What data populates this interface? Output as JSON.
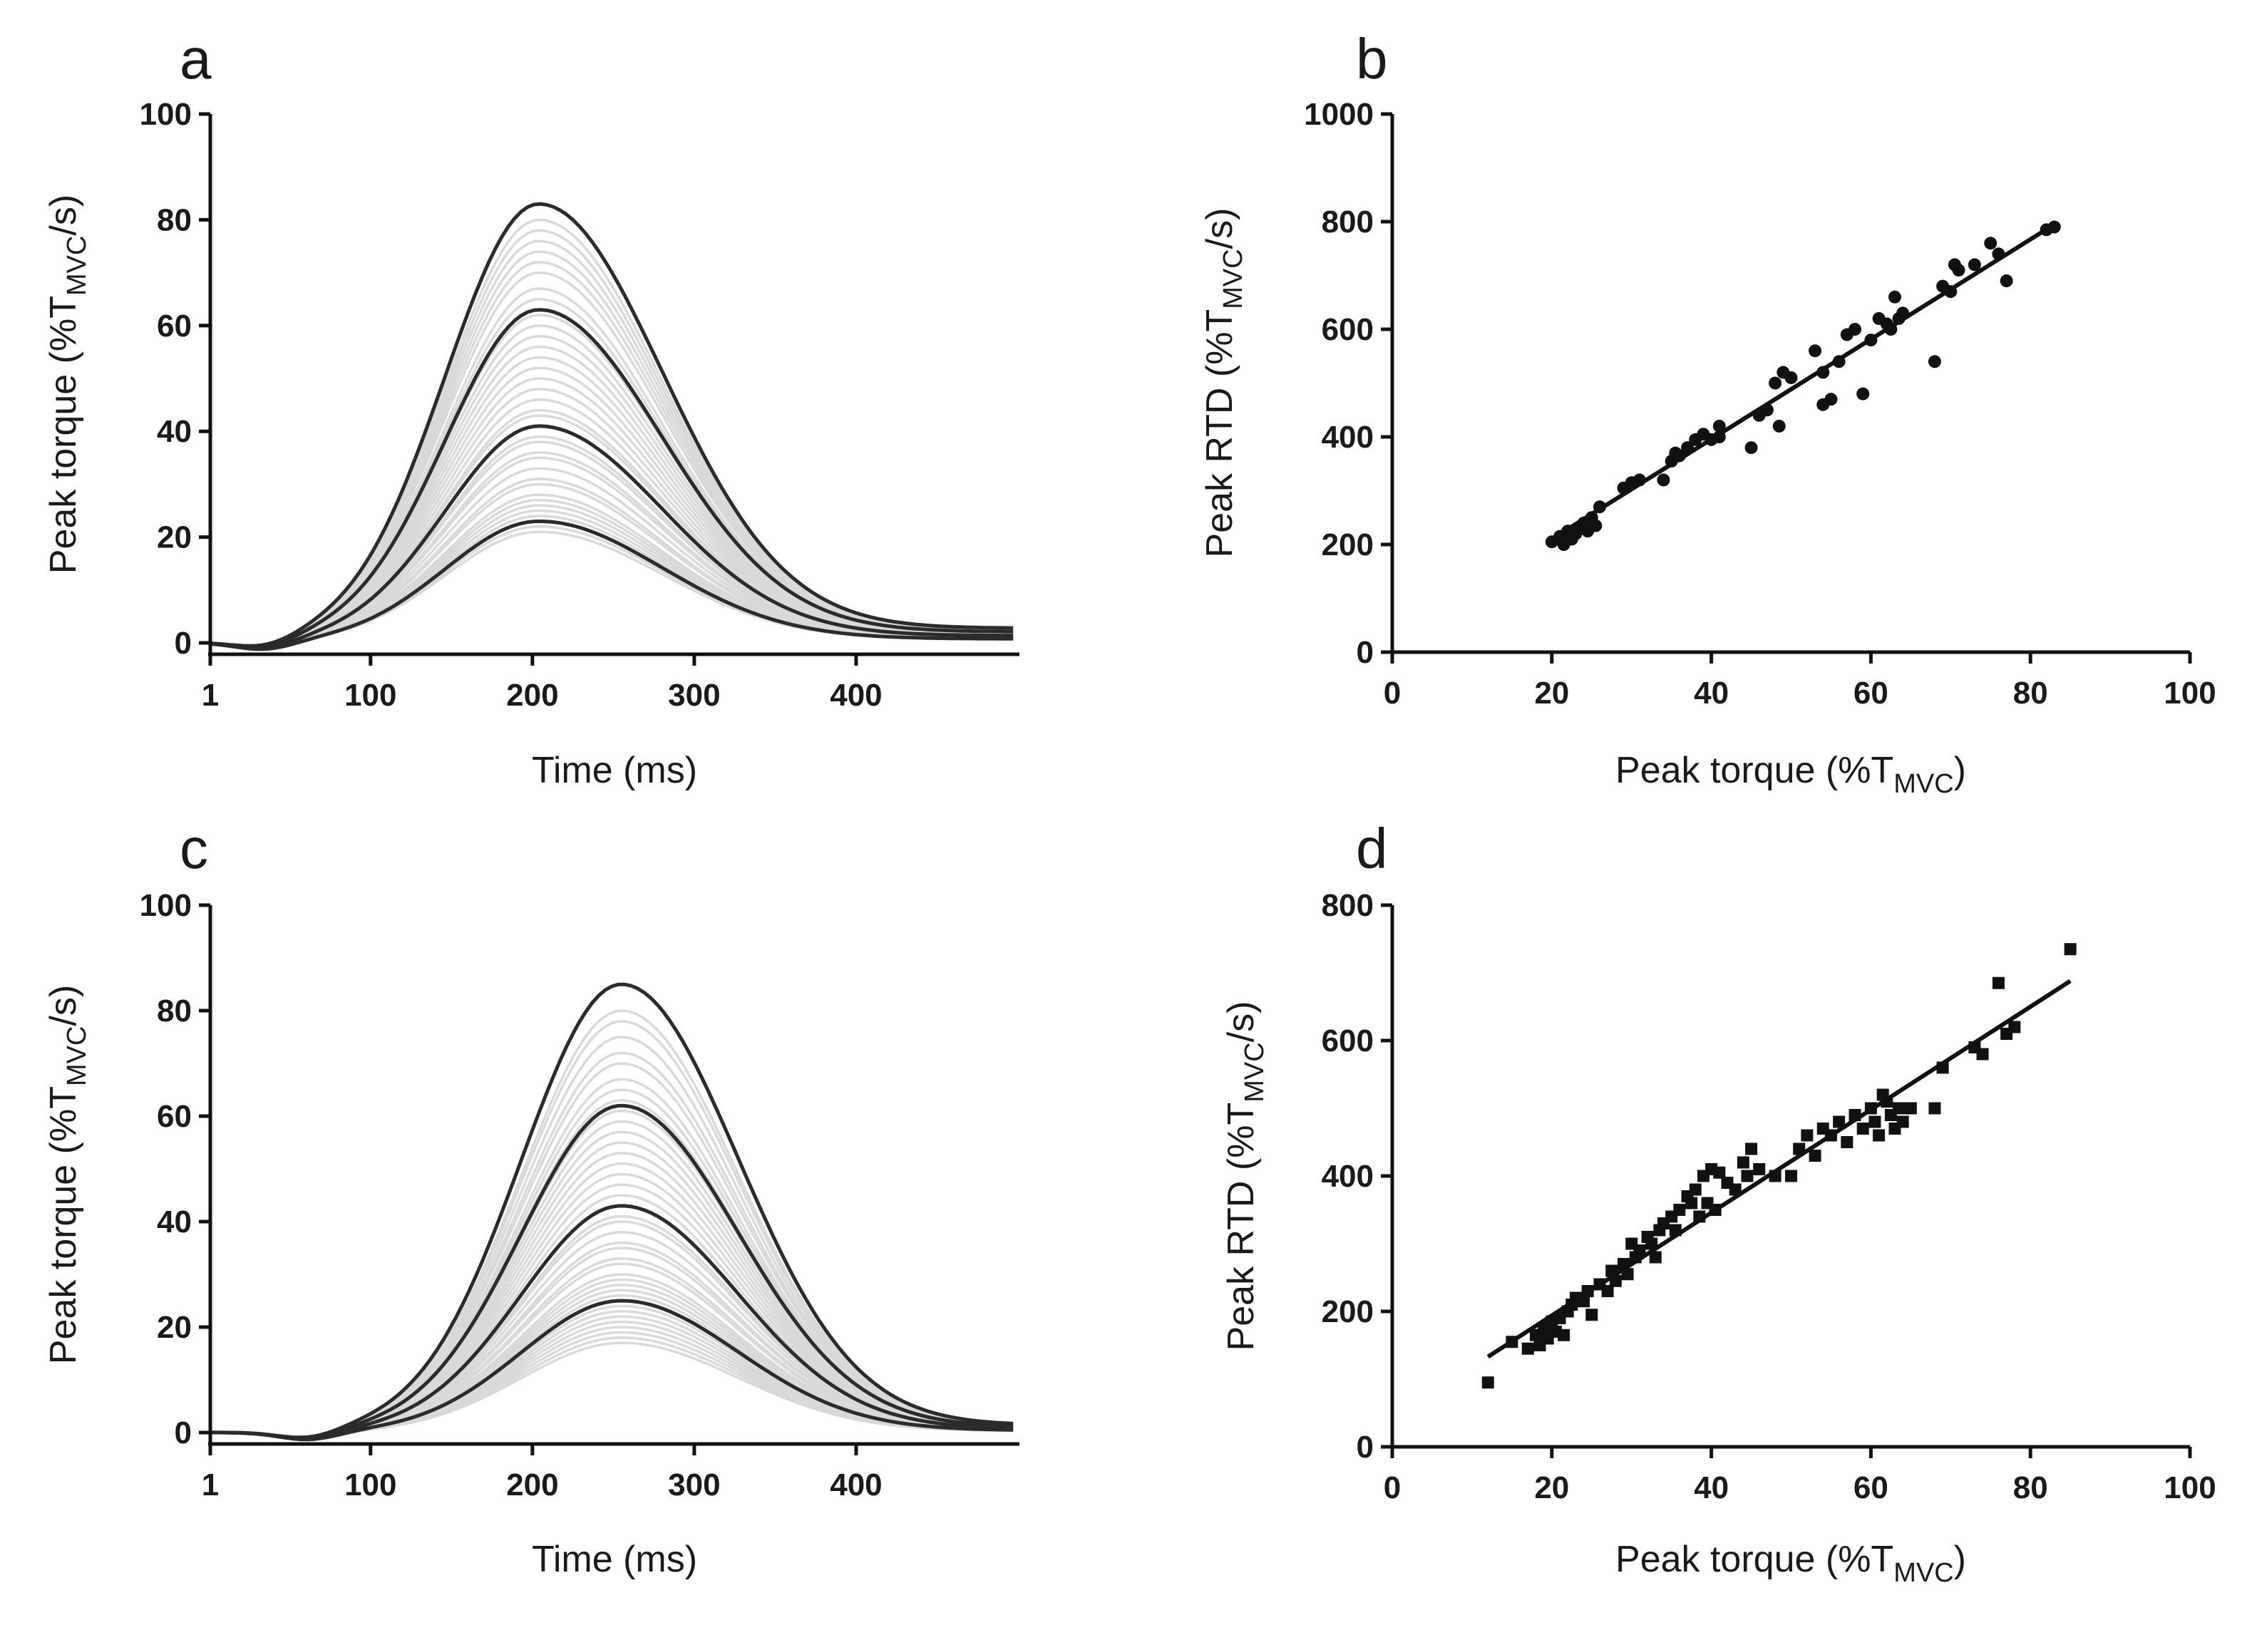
{
  "figure": {
    "panel_letters": [
      "a",
      "b",
      "c",
      "d"
    ]
  },
  "chart_data": [
    {
      "panel": "a",
      "type": "line",
      "xlabel": "Time (ms)",
      "ylabel_main": "Peak torque  (%T",
      "ylabel_sub": "MVC",
      "ylabel_end": "/s)",
      "xlim": [
        1,
        500
      ],
      "ylim": [
        0,
        100
      ],
      "xticks": [
        1,
        100,
        200,
        300,
        400
      ],
      "yticks": [
        0,
        20,
        40,
        60,
        80,
        100
      ],
      "curves": {
        "peak_time": 204,
        "rise_sigma": 58,
        "fall_sigma": 76,
        "onset": 35,
        "tail": 2
      },
      "highlight_series": [
        {
          "name": "curve-83",
          "peak": 83
        },
        {
          "name": "curve-63",
          "peak": 63
        },
        {
          "name": "curve-41",
          "peak": 41
        },
        {
          "name": "curve-23",
          "peak": 23
        }
      ],
      "background_peaks": [
        21,
        22,
        23,
        24,
        25,
        26,
        27,
        28,
        30,
        31,
        33,
        35,
        36,
        38,
        39,
        41,
        43,
        44,
        46,
        48,
        50,
        52,
        54,
        56,
        58,
        60,
        62,
        65,
        67,
        70,
        72,
        74,
        76,
        78,
        80
      ]
    },
    {
      "panel": "b",
      "type": "scatter",
      "marker": "circle",
      "xlabel_main": "Peak torque (%T",
      "xlabel_sub": "MVC",
      "xlabel_end": ")",
      "ylabel_main": "Peak RTD (%T",
      "ylabel_sub": "MVC",
      "ylabel_end": "/s)",
      "xlim": [
        0,
        100
      ],
      "ylim": [
        0,
        1000
      ],
      "xticks": [
        0,
        20,
        40,
        60,
        80,
        100
      ],
      "yticks": [
        0,
        200,
        400,
        600,
        800,
        1000
      ],
      "regression": {
        "x": [
          20,
          83
        ],
        "y": [
          210,
          795
        ]
      },
      "points": [
        [
          20,
          205
        ],
        [
          21,
          215
        ],
        [
          21.5,
          200
        ],
        [
          22,
          225
        ],
        [
          22.5,
          210
        ],
        [
          23,
          220
        ],
        [
          23.5,
          230
        ],
        [
          24,
          240
        ],
        [
          24.5,
          225
        ],
        [
          25,
          250
        ],
        [
          25.5,
          235
        ],
        [
          26,
          270
        ],
        [
          29,
          305
        ],
        [
          30,
          315
        ],
        [
          31,
          320
        ],
        [
          34,
          320
        ],
        [
          35,
          355
        ],
        [
          35.5,
          370
        ],
        [
          36,
          365
        ],
        [
          37,
          380
        ],
        [
          38,
          395
        ],
        [
          39,
          405
        ],
        [
          40,
          395
        ],
        [
          41,
          400
        ],
        [
          41,
          420
        ],
        [
          45,
          380
        ],
        [
          46,
          440
        ],
        [
          47,
          450
        ],
        [
          48,
          500
        ],
        [
          48.5,
          420
        ],
        [
          49,
          520
        ],
        [
          50,
          510
        ],
        [
          53,
          560
        ],
        [
          54,
          520
        ],
        [
          54,
          460
        ],
        [
          55,
          470
        ],
        [
          56,
          540
        ],
        [
          57,
          590
        ],
        [
          58,
          600
        ],
        [
          59,
          480
        ],
        [
          60,
          580
        ],
        [
          61,
          620
        ],
        [
          62,
          610
        ],
        [
          62.5,
          600
        ],
        [
          63,
          660
        ],
        [
          63.5,
          620
        ],
        [
          64,
          630
        ],
        [
          68,
          540
        ],
        [
          69,
          680
        ],
        [
          70,
          670
        ],
        [
          70.5,
          720
        ],
        [
          71,
          710
        ],
        [
          73,
          720
        ],
        [
          75,
          760
        ],
        [
          76,
          740
        ],
        [
          77,
          690
        ],
        [
          82,
          785
        ],
        [
          83,
          790
        ]
      ]
    },
    {
      "panel": "c",
      "type": "line",
      "xlabel": "Time (ms)",
      "ylabel_main": "Peak torque  (%T",
      "ylabel_sub": "MVC",
      "ylabel_end": "/s)",
      "xlim": [
        1,
        500
      ],
      "ylim": [
        0,
        100
      ],
      "xticks": [
        1,
        100,
        200,
        300,
        400
      ],
      "yticks": [
        0,
        20,
        40,
        60,
        80,
        100
      ],
      "curves": {
        "peak_time": 255,
        "rise_sigma": 62,
        "fall_sigma": 72,
        "onset": 62,
        "tail": 1
      },
      "highlight_series": [
        {
          "name": "curve-85",
          "peak": 85
        },
        {
          "name": "curve-62",
          "peak": 62
        },
        {
          "name": "curve-43",
          "peak": 43
        },
        {
          "name": "curve-25",
          "peak": 25
        }
      ],
      "background_peaks": [
        17,
        18,
        19,
        20,
        21,
        22,
        23,
        24,
        25,
        26,
        27,
        28,
        29,
        30,
        32,
        33,
        35,
        36,
        38,
        40,
        41,
        43,
        45,
        47,
        49,
        51,
        53,
        55,
        57,
        59,
        61,
        63,
        65,
        67,
        70,
        72,
        75,
        78,
        80
      ]
    },
    {
      "panel": "d",
      "type": "scatter",
      "marker": "square",
      "xlabel_main": "Peak torque (%T",
      "xlabel_sub": "MVC",
      "xlabel_end": ")",
      "ylabel_main": "Peak RTD (%T",
      "ylabel_sub": "MVC",
      "ylabel_end": "/s)",
      "xlim": [
        0,
        100
      ],
      "ylim": [
        0,
        800
      ],
      "xticks": [
        0,
        20,
        40,
        60,
        80,
        100
      ],
      "yticks": [
        0,
        200,
        400,
        600,
        800
      ],
      "regression": {
        "x": [
          12,
          85
        ],
        "y": [
          133,
          688
        ]
      },
      "points": [
        [
          12,
          95
        ],
        [
          15,
          155
        ],
        [
          17,
          145
        ],
        [
          18,
          165
        ],
        [
          18.5,
          150
        ],
        [
          19,
          175
        ],
        [
          19.5,
          160
        ],
        [
          20,
          185
        ],
        [
          20.5,
          170
        ],
        [
          21,
          190
        ],
        [
          21.5,
          165
        ],
        [
          22,
          200
        ],
        [
          22.5,
          210
        ],
        [
          23,
          220
        ],
        [
          24,
          215
        ],
        [
          24.5,
          230
        ],
        [
          25,
          195
        ],
        [
          26,
          240
        ],
        [
          27,
          230
        ],
        [
          27.5,
          260
        ],
        [
          28,
          245
        ],
        [
          29,
          270
        ],
        [
          29.5,
          255
        ],
        [
          30,
          300
        ],
        [
          30.5,
          280
        ],
        [
          31,
          290
        ],
        [
          32,
          310
        ],
        [
          32.5,
          300
        ],
        [
          33,
          280
        ],
        [
          33.5,
          320
        ],
        [
          34,
          330
        ],
        [
          35,
          340
        ],
        [
          35.5,
          320
        ],
        [
          36,
          350
        ],
        [
          37,
          370
        ],
        [
          37.5,
          360
        ],
        [
          38,
          380
        ],
        [
          38.5,
          340
        ],
        [
          39,
          400
        ],
        [
          39.5,
          360
        ],
        [
          40,
          410
        ],
        [
          40.5,
          350
        ],
        [
          41,
          405
        ],
        [
          42,
          390
        ],
        [
          43,
          380
        ],
        [
          44,
          420
        ],
        [
          44.5,
          400
        ],
        [
          45,
          440
        ],
        [
          46,
          410
        ],
        [
          48,
          400
        ],
        [
          50,
          400
        ],
        [
          51,
          440
        ],
        [
          52,
          460
        ],
        [
          53,
          430
        ],
        [
          54,
          470
        ],
        [
          55,
          460
        ],
        [
          56,
          480
        ],
        [
          57,
          450
        ],
        [
          58,
          490
        ],
        [
          59,
          470
        ],
        [
          60,
          500
        ],
        [
          60.5,
          480
        ],
        [
          61,
          460
        ],
        [
          61.5,
          520
        ],
        [
          62,
          510
        ],
        [
          62.5,
          490
        ],
        [
          63,
          470
        ],
        [
          63.5,
          500
        ],
        [
          64,
          480
        ],
        [
          65,
          500
        ],
        [
          68,
          500
        ],
        [
          69,
          560
        ],
        [
          73,
          590
        ],
        [
          74,
          580
        ],
        [
          76,
          685
        ],
        [
          77,
          610
        ],
        [
          78,
          620
        ],
        [
          85,
          735
        ]
      ]
    }
  ]
}
